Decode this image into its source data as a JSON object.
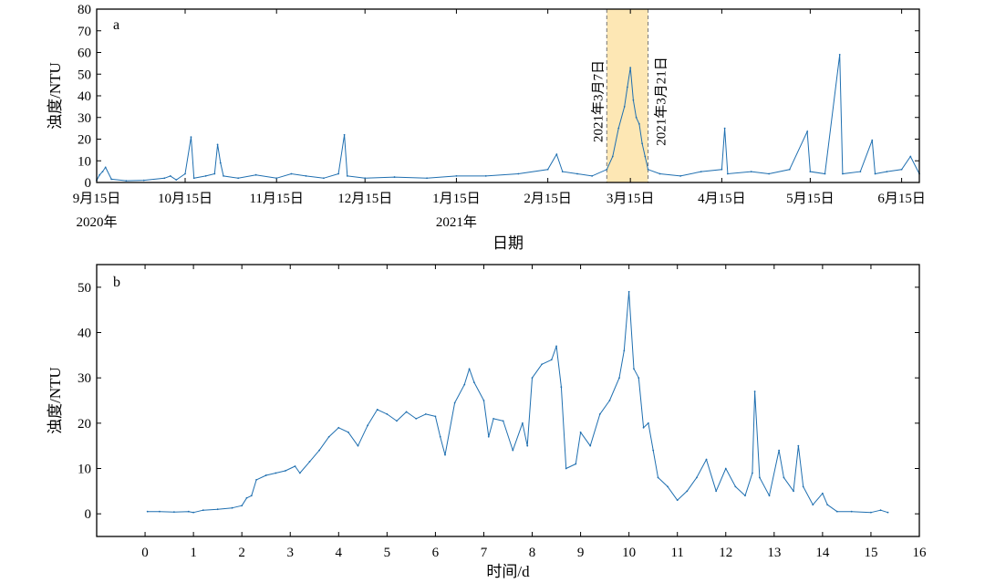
{
  "chart_data": [
    {
      "panel": "a",
      "type": "line",
      "ylabel": "浊度/NTU",
      "xlabel": "日期",
      "ylim": [
        0,
        80
      ],
      "yticks": [
        0,
        10,
        20,
        30,
        40,
        50,
        60,
        70,
        80
      ],
      "x_start": "2020-09-15",
      "x_end": "2021-06-21",
      "xticks": [
        {
          "date": "2020-09-15",
          "label": "9月15日",
          "sublabel": "2020年"
        },
        {
          "date": "2020-10-15",
          "label": "10月15日",
          "sublabel": ""
        },
        {
          "date": "2020-11-15",
          "label": "11月15日",
          "sublabel": ""
        },
        {
          "date": "2020-12-15",
          "label": "12月15日",
          "sublabel": ""
        },
        {
          "date": "2021-01-15",
          "label": "1月15日",
          "sublabel": "2021年"
        },
        {
          "date": "2021-02-15",
          "label": "2月15日",
          "sublabel": ""
        },
        {
          "date": "2021-03-15",
          "label": "3月15日",
          "sublabel": ""
        },
        {
          "date": "2021-04-15",
          "label": "4月15日",
          "sublabel": ""
        },
        {
          "date": "2021-05-15",
          "label": "5月15日",
          "sublabel": ""
        },
        {
          "date": "2021-06-15",
          "label": "6月15日",
          "sublabel": ""
        }
      ],
      "highlight": {
        "start": "2021-03-07",
        "end": "2021-03-21",
        "start_label": "2021年3月7日",
        "end_label": "2021年3月21日",
        "fill": "#fde7b4"
      },
      "series": [
        {
          "color": "#1f6fb0",
          "points": [
            [
              "2020-09-15",
              1.0
            ],
            [
              "2020-09-16",
              3.5
            ],
            [
              "2020-09-17",
              5.0
            ],
            [
              "2020-09-18",
              7.0
            ],
            [
              "2020-09-20",
              1.5
            ],
            [
              "2020-09-25",
              0.8
            ],
            [
              "2020-10-01",
              1.0
            ],
            [
              "2020-10-08",
              2.0
            ],
            [
              "2020-10-10",
              3.0
            ],
            [
              "2020-10-12",
              1.2
            ],
            [
              "2020-10-15",
              4.0
            ],
            [
              "2020-10-17",
              21.0
            ],
            [
              "2020-10-18",
              2.0
            ],
            [
              "2020-10-22",
              3.0
            ],
            [
              "2020-10-25",
              4.0
            ],
            [
              "2020-10-26",
              17.5
            ],
            [
              "2020-10-27",
              9.0
            ],
            [
              "2020-10-28",
              3.0
            ],
            [
              "2020-11-02",
              2.0
            ],
            [
              "2020-11-08",
              3.5
            ],
            [
              "2020-11-15",
              2.0
            ],
            [
              "2020-11-20",
              4.0
            ],
            [
              "2020-11-25",
              3.0
            ],
            [
              "2020-12-01",
              2.0
            ],
            [
              "2020-12-06",
              4.0
            ],
            [
              "2020-12-08",
              22.0
            ],
            [
              "2020-12-09",
              3.0
            ],
            [
              "2020-12-15",
              2.0
            ],
            [
              "2020-12-25",
              2.5
            ],
            [
              "2021-01-05",
              2.0
            ],
            [
              "2021-01-15",
              3.0
            ],
            [
              "2021-01-25",
              3.0
            ],
            [
              "2021-02-05",
              4.0
            ],
            [
              "2021-02-15",
              6.0
            ],
            [
              "2021-02-18",
              13.0
            ],
            [
              "2021-02-20",
              5.0
            ],
            [
              "2021-02-25",
              4.0
            ],
            [
              "2021-03-02",
              3.0
            ],
            [
              "2021-03-07",
              6.0
            ],
            [
              "2021-03-09",
              12.0
            ],
            [
              "2021-03-11",
              25.0
            ],
            [
              "2021-03-13",
              35.0
            ],
            [
              "2021-03-14",
              44.0
            ],
            [
              "2021-03-15",
              53.0
            ],
            [
              "2021-03-16",
              38.0
            ],
            [
              "2021-03-17",
              30.0
            ],
            [
              "2021-03-18",
              27.0
            ],
            [
              "2021-03-19",
              18.0
            ],
            [
              "2021-03-20",
              12.0
            ],
            [
              "2021-03-21",
              6.0
            ],
            [
              "2021-03-25",
              4.0
            ],
            [
              "2021-04-01",
              3.0
            ],
            [
              "2021-04-08",
              5.0
            ],
            [
              "2021-04-15",
              6.0
            ],
            [
              "2021-04-16",
              25.0
            ],
            [
              "2021-04-17",
              4.0
            ],
            [
              "2021-04-25",
              5.0
            ],
            [
              "2021-05-01",
              4.0
            ],
            [
              "2021-05-08",
              6.0
            ],
            [
              "2021-05-14",
              23.5
            ],
            [
              "2021-05-15",
              5.0
            ],
            [
              "2021-05-20",
              4.0
            ],
            [
              "2021-05-25",
              59.0
            ],
            [
              "2021-05-26",
              4.0
            ],
            [
              "2021-06-01",
              5.0
            ],
            [
              "2021-06-05",
              19.5
            ],
            [
              "2021-06-06",
              4.0
            ],
            [
              "2021-06-10",
              5.0
            ],
            [
              "2021-06-15",
              6.0
            ],
            [
              "2021-06-18",
              12.0
            ],
            [
              "2021-06-21",
              4.0
            ]
          ]
        }
      ]
    },
    {
      "panel": "b",
      "type": "line",
      "ylabel": "浊度/NTU",
      "xlabel": "时间/d",
      "xlim": [
        -1,
        16
      ],
      "ylim": [
        -5,
        55
      ],
      "xticks": [
        0,
        1,
        2,
        3,
        4,
        5,
        6,
        7,
        8,
        9,
        10,
        11,
        12,
        13,
        14,
        15,
        16
      ],
      "yticks": [
        0,
        10,
        20,
        30,
        40,
        50
      ],
      "series": [
        {
          "color": "#1f6fb0",
          "points": [
            [
              0.05,
              0.5
            ],
            [
              0.3,
              0.5
            ],
            [
              0.6,
              0.4
            ],
            [
              0.9,
              0.5
            ],
            [
              1.0,
              0.3
            ],
            [
              1.2,
              0.8
            ],
            [
              1.5,
              1.0
            ],
            [
              1.8,
              1.3
            ],
            [
              2.0,
              1.8
            ],
            [
              2.1,
              3.5
            ],
            [
              2.2,
              4.0
            ],
            [
              2.3,
              7.5
            ],
            [
              2.5,
              8.5
            ],
            [
              2.7,
              9.0
            ],
            [
              2.9,
              9.5
            ],
            [
              3.1,
              10.5
            ],
            [
              3.2,
              9.0
            ],
            [
              3.4,
              11.5
            ],
            [
              3.6,
              14.0
            ],
            [
              3.8,
              17.0
            ],
            [
              4.0,
              19.0
            ],
            [
              4.2,
              18.0
            ],
            [
              4.4,
              15.0
            ],
            [
              4.6,
              19.5
            ],
            [
              4.8,
              23.0
            ],
            [
              5.0,
              22.0
            ],
            [
              5.2,
              20.5
            ],
            [
              5.4,
              22.5
            ],
            [
              5.6,
              21.0
            ],
            [
              5.8,
              22.0
            ],
            [
              6.0,
              21.5
            ],
            [
              6.1,
              17.0
            ],
            [
              6.2,
              13.0
            ],
            [
              6.4,
              24.5
            ],
            [
              6.6,
              28.5
            ],
            [
              6.7,
              32.0
            ],
            [
              6.8,
              29.0
            ],
            [
              7.0,
              25.0
            ],
            [
              7.1,
              17.0
            ],
            [
              7.2,
              21.0
            ],
            [
              7.4,
              20.5
            ],
            [
              7.6,
              14.0
            ],
            [
              7.8,
              20.0
            ],
            [
              7.9,
              15.0
            ],
            [
              8.0,
              30.0
            ],
            [
              8.2,
              33.0
            ],
            [
              8.4,
              34.0
            ],
            [
              8.5,
              37.0
            ],
            [
              8.6,
              28.0
            ],
            [
              8.7,
              10.0
            ],
            [
              8.9,
              11.0
            ],
            [
              9.0,
              18.0
            ],
            [
              9.2,
              15.0
            ],
            [
              9.4,
              22.0
            ],
            [
              9.6,
              25.0
            ],
            [
              9.8,
              30.0
            ],
            [
              9.9,
              36.0
            ],
            [
              10.0,
              49.0
            ],
            [
              10.1,
              32.0
            ],
            [
              10.2,
              30.0
            ],
            [
              10.3,
              19.0
            ],
            [
              10.4,
              20.0
            ],
            [
              10.5,
              14.0
            ],
            [
              10.6,
              8.0
            ],
            [
              10.8,
              6.0
            ],
            [
              11.0,
              3.0
            ],
            [
              11.2,
              5.0
            ],
            [
              11.4,
              8.0
            ],
            [
              11.6,
              12.0
            ],
            [
              11.8,
              5.0
            ],
            [
              12.0,
              10.0
            ],
            [
              12.2,
              6.0
            ],
            [
              12.4,
              4.0
            ],
            [
              12.55,
              9.0
            ],
            [
              12.6,
              27.0
            ],
            [
              12.7,
              8.0
            ],
            [
              12.9,
              4.0
            ],
            [
              13.1,
              14.0
            ],
            [
              13.2,
              8.0
            ],
            [
              13.4,
              5.0
            ],
            [
              13.5,
              15.0
            ],
            [
              13.6,
              6.0
            ],
            [
              13.8,
              2.0
            ],
            [
              14.0,
              4.5
            ],
            [
              14.1,
              2.0
            ],
            [
              14.3,
              0.5
            ],
            [
              14.6,
              0.5
            ],
            [
              15.0,
              0.3
            ],
            [
              15.2,
              0.8
            ],
            [
              15.35,
              0.3
            ]
          ]
        }
      ]
    }
  ]
}
